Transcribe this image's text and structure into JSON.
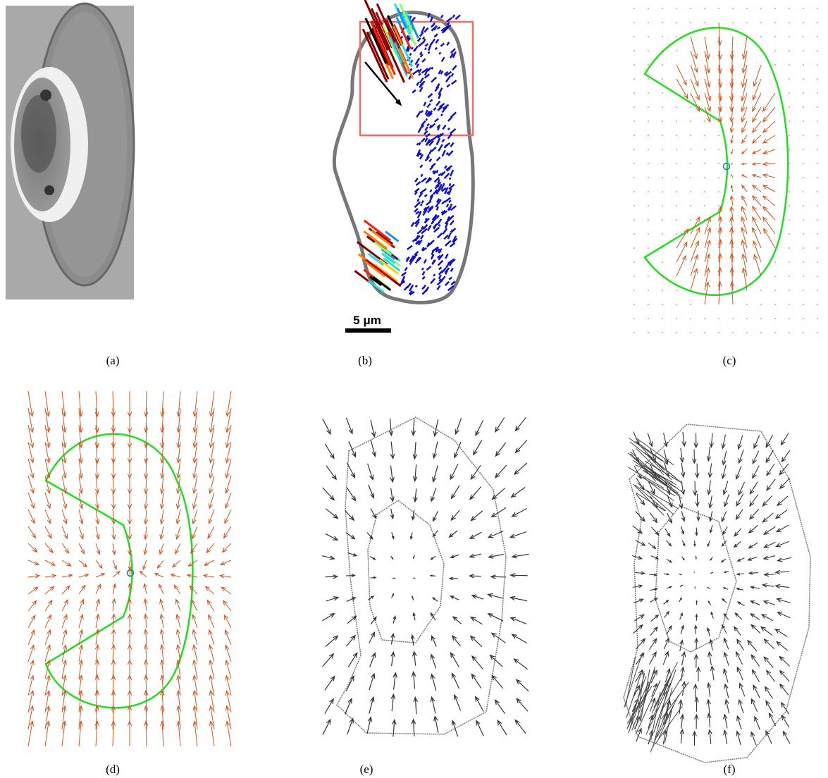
{
  "panels": [
    {
      "label": "(a)"
    },
    {
      "label": "(b)"
    },
    {
      "label": "(c)"
    },
    {
      "label": "(d)"
    },
    {
      "label": "(e)"
    },
    {
      "label": "(f)"
    }
  ],
  "scale_bar": "5 μm"
}
